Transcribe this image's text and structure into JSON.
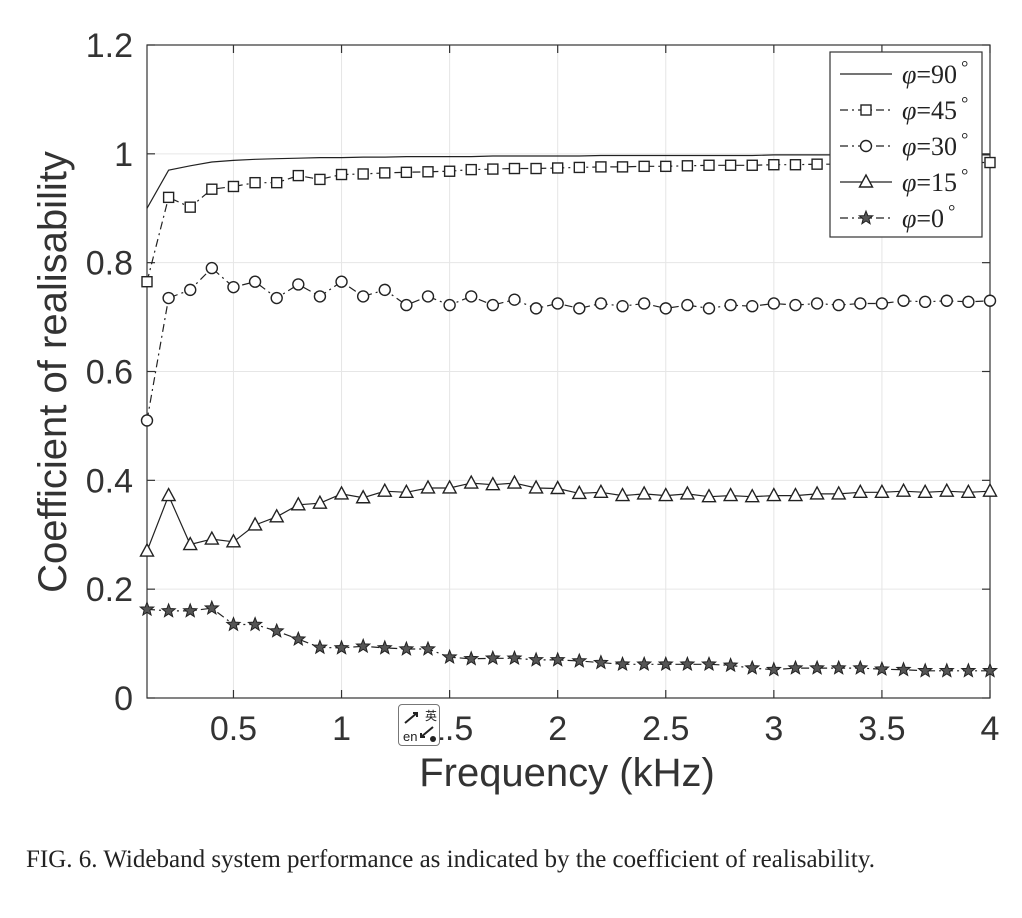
{
  "chart_data": {
    "type": "line",
    "title": "",
    "xlabel": "Frequency (kHz)",
    "ylabel": "Coefficient of realisability",
    "xlim": [
      0.1,
      4
    ],
    "ylim": [
      0,
      1.2
    ],
    "xticks": [
      "0.5",
      "1",
      "1.5",
      "2",
      "2.5",
      "3",
      "3.5",
      "4"
    ],
    "xtick_values": [
      0.5,
      1,
      1.5,
      2,
      2.5,
      3,
      3.5,
      4
    ],
    "yticks": [
      "0",
      "0.2",
      "0.4",
      "0.6",
      "0.8",
      "1",
      "1.2"
    ],
    "ytick_values": [
      0,
      0.2,
      0.4,
      0.6,
      0.8,
      1.0,
      1.2
    ],
    "grid": true,
    "legend_position": "top-right",
    "x": [
      0.1,
      0.2,
      0.3,
      0.4,
      0.5,
      0.6,
      0.7,
      0.8,
      0.9,
      1.0,
      1.1,
      1.2,
      1.3,
      1.4,
      1.5,
      1.6,
      1.7,
      1.8,
      1.9,
      2.0,
      2.1,
      2.2,
      2.3,
      2.4,
      2.5,
      2.6,
      2.7,
      2.8,
      2.9,
      3.0,
      3.1,
      3.2,
      3.3,
      3.4,
      3.5,
      3.6,
      3.7,
      3.8,
      3.9,
      4.0
    ],
    "series": [
      {
        "name": "φ=90°",
        "symbol": "φ",
        "label": "=90",
        "degree": "°",
        "marker": "none",
        "dash": "solid",
        "values": [
          0.9,
          0.97,
          0.978,
          0.985,
          0.988,
          0.99,
          0.991,
          0.992,
          0.993,
          0.993,
          0.994,
          0.994,
          0.995,
          0.995,
          0.995,
          0.995,
          0.996,
          0.996,
          0.996,
          0.996,
          0.996,
          0.997,
          0.997,
          0.997,
          0.997,
          0.997,
          0.997,
          0.997,
          0.997,
          0.998,
          0.998,
          0.998,
          0.998,
          0.998,
          0.998,
          0.998,
          0.998,
          0.998,
          0.998,
          0.998
        ]
      },
      {
        "name": "φ=45°",
        "symbol": "φ",
        "label": "=45",
        "degree": "°",
        "marker": "square",
        "dash": "dashdot",
        "values": [
          0.765,
          0.92,
          0.902,
          0.935,
          0.94,
          0.947,
          0.947,
          0.96,
          0.953,
          0.962,
          0.963,
          0.965,
          0.966,
          0.967,
          0.968,
          0.971,
          0.972,
          0.973,
          0.973,
          0.974,
          0.975,
          0.976,
          0.976,
          0.977,
          0.977,
          0.978,
          0.979,
          0.979,
          0.979,
          0.98,
          0.98,
          0.981,
          0.981,
          0.981,
          0.982,
          0.982,
          0.983,
          0.983,
          0.984,
          0.984
        ]
      },
      {
        "name": "φ=30°",
        "symbol": "φ",
        "label": "=30",
        "degree": "°",
        "marker": "circle",
        "dash": "dashdot",
        "values": [
          0.51,
          0.735,
          0.75,
          0.79,
          0.755,
          0.765,
          0.735,
          0.76,
          0.738,
          0.765,
          0.738,
          0.75,
          0.722,
          0.738,
          0.722,
          0.738,
          0.722,
          0.732,
          0.716,
          0.725,
          0.716,
          0.725,
          0.72,
          0.725,
          0.716,
          0.722,
          0.716,
          0.722,
          0.72,
          0.725,
          0.722,
          0.725,
          0.722,
          0.725,
          0.725,
          0.73,
          0.728,
          0.73,
          0.728,
          0.73
        ]
      },
      {
        "name": "φ=15°",
        "symbol": "φ",
        "label": "=15",
        "degree": "°",
        "marker": "triangle",
        "dash": "solid",
        "values": [
          0.27,
          0.372,
          0.282,
          0.292,
          0.287,
          0.318,
          0.333,
          0.355,
          0.358,
          0.375,
          0.368,
          0.38,
          0.378,
          0.386,
          0.386,
          0.395,
          0.392,
          0.395,
          0.386,
          0.385,
          0.376,
          0.378,
          0.372,
          0.375,
          0.372,
          0.375,
          0.37,
          0.372,
          0.37,
          0.372,
          0.372,
          0.375,
          0.375,
          0.378,
          0.378,
          0.38,
          0.378,
          0.38,
          0.378,
          0.38
        ]
      },
      {
        "name": "φ=0°",
        "symbol": "φ",
        "label": "=0",
        "degree": "°",
        "marker": "star",
        "dash": "dashdot",
        "values": [
          0.163,
          0.16,
          0.16,
          0.165,
          0.135,
          0.135,
          0.123,
          0.108,
          0.093,
          0.092,
          0.095,
          0.092,
          0.09,
          0.09,
          0.075,
          0.072,
          0.073,
          0.073,
          0.07,
          0.07,
          0.068,
          0.065,
          0.062,
          0.062,
          0.062,
          0.062,
          0.062,
          0.06,
          0.055,
          0.052,
          0.055,
          0.055,
          0.055,
          0.055,
          0.053,
          0.052,
          0.05,
          0.05,
          0.05,
          0.05
        ]
      }
    ]
  },
  "caption": "FIG. 6. Wideband system performance as indicated by the coefficient of realisability.",
  "overlay": {
    "icon": "translate-icon",
    "glyph_top": "英",
    "glyph_bottom": "en"
  },
  "colors": {
    "line": "#222222",
    "grid": "#e6e6e6",
    "axis": "#333333",
    "text": "#333333"
  }
}
